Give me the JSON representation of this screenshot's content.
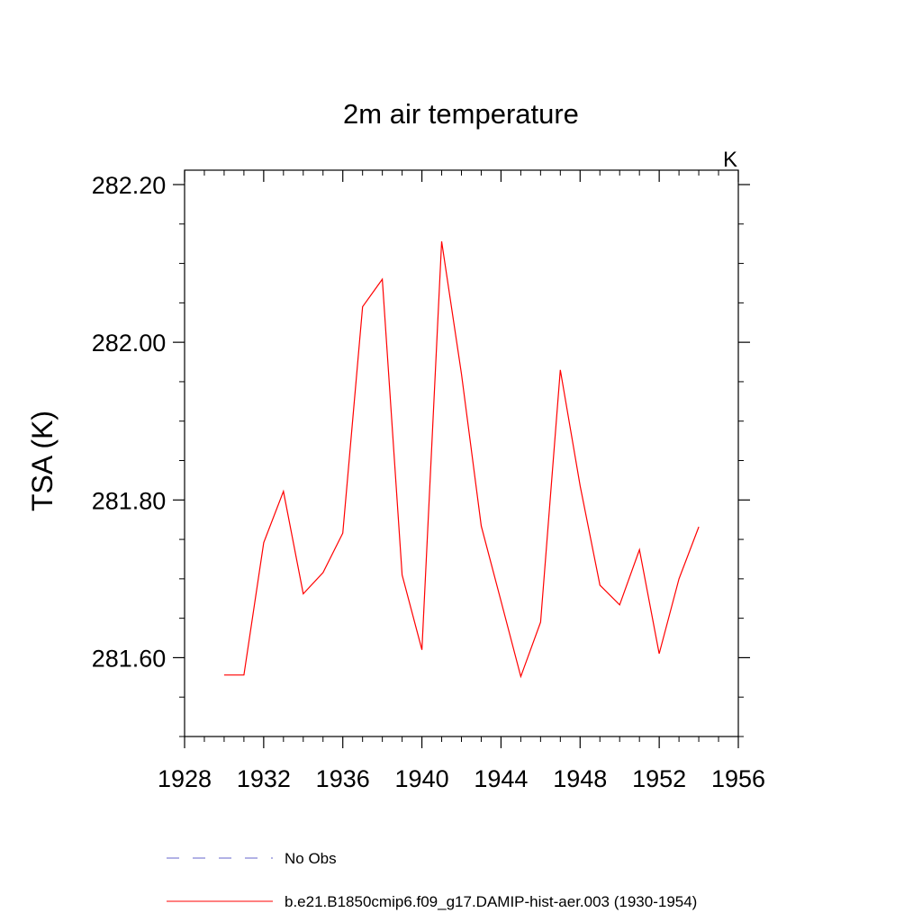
{
  "chart_data": {
    "type": "line",
    "title": "2m air temperature",
    "ylabel": "TSA  (K)",
    "units_label": "K",
    "xlim": [
      1928,
      1956
    ],
    "ylim": [
      281.5,
      282.2
    ],
    "x_ticks": [
      1928,
      1932,
      1936,
      1940,
      1944,
      1948,
      1952,
      1956
    ],
    "x_tick_labels": [
      "1928",
      "1932",
      "1936",
      "1940",
      "1944",
      "1948",
      "1952",
      "1956"
    ],
    "y_ticks": [
      281.6,
      281.8,
      282.0,
      282.2
    ],
    "y_tick_labels": [
      "281.60",
      "281.80",
      "282.00",
      "282.20"
    ],
    "y_minor_step": 0.05,
    "x_minor_step": 1,
    "grid": false,
    "legend_position": "bottom",
    "series": [
      {
        "name": "b.e21.B1850cmip6.f09_g17.DAMIP-hist-aer.003 (1930-1954)",
        "color": "#ff0000",
        "x": [
          1930,
          1931,
          1932,
          1933,
          1934,
          1935,
          1936,
          1937,
          1938,
          1939,
          1940,
          1941,
          1942,
          1943,
          1944,
          1945,
          1946,
          1947,
          1948,
          1949,
          1950,
          1951,
          1952,
          1953,
          1954
        ],
        "values": [
          281.578,
          281.578,
          281.746,
          281.811,
          281.681,
          281.708,
          281.758,
          282.045,
          282.08,
          281.705,
          281.61,
          282.128,
          281.96,
          281.767,
          281.672,
          281.576,
          281.645,
          281.965,
          281.818,
          281.692,
          281.667,
          281.737,
          281.605,
          281.7,
          281.766
        ]
      }
    ],
    "legend": [
      {
        "label": "No Obs",
        "color": "#6666cc",
        "style": "dashed"
      },
      {
        "label": "b.e21.B1850cmip6.f09_g17.DAMIP-hist-aer.003 (1930-1954)",
        "color": "#ff0000",
        "style": "solid"
      }
    ]
  }
}
